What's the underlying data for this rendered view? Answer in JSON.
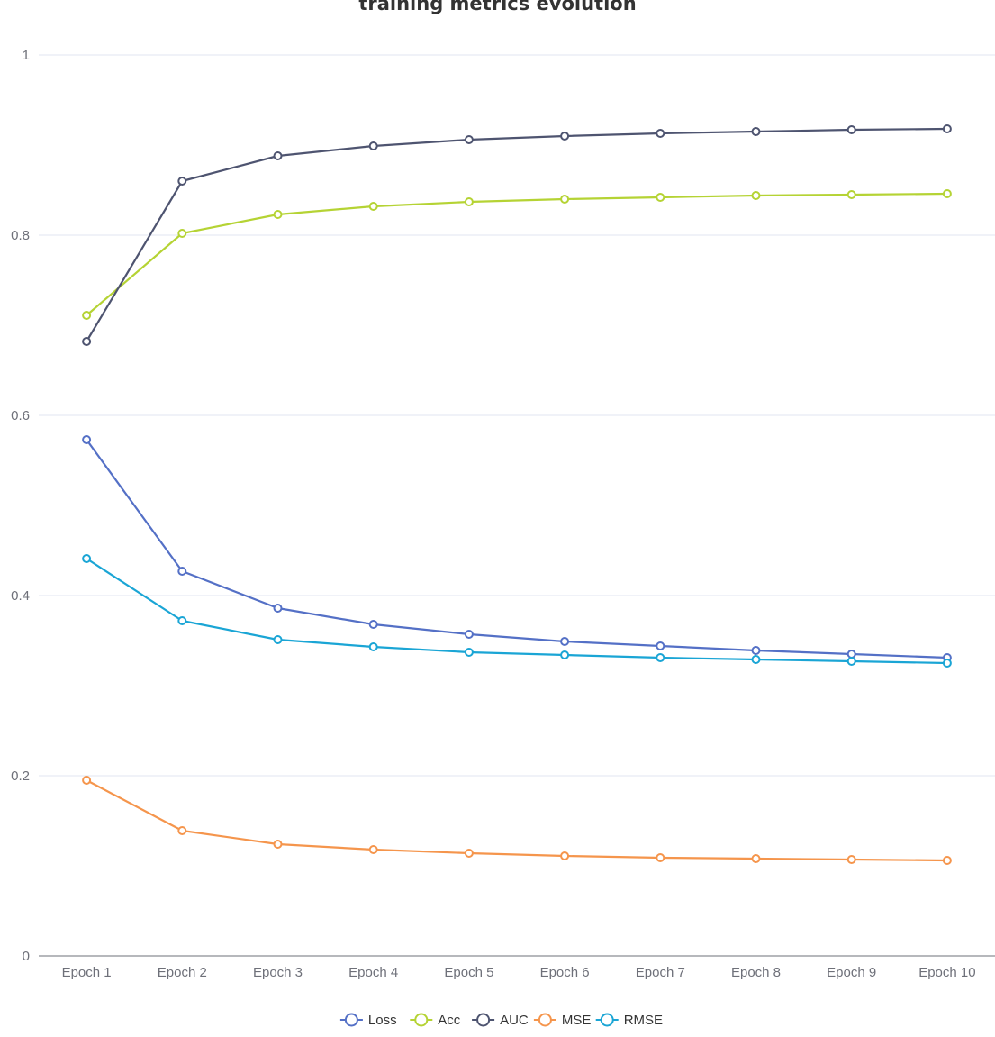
{
  "chart_data": {
    "type": "line",
    "title": "training metrics evolution",
    "xlabel": "",
    "ylabel": "",
    "categories": [
      "Epoch 1",
      "Epoch 2",
      "Epoch 3",
      "Epoch 4",
      "Epoch 5",
      "Epoch 6",
      "Epoch 7",
      "Epoch 8",
      "Epoch 9",
      "Epoch 10"
    ],
    "ylim": [
      0,
      1
    ],
    "y_ticks": [
      "0",
      "0.2",
      "0.4",
      "0.6",
      "0.8",
      "1"
    ],
    "grid": true,
    "legend_position": "bottom",
    "series": [
      {
        "name": "Loss",
        "color": "#5470c6",
        "values": [
          0.573,
          0.427,
          0.386,
          0.368,
          0.357,
          0.349,
          0.344,
          0.339,
          0.335,
          0.331
        ]
      },
      {
        "name": "Acc",
        "color": "#b5d334",
        "values": [
          0.711,
          0.802,
          0.823,
          0.832,
          0.837,
          0.84,
          0.842,
          0.844,
          0.845,
          0.846
        ]
      },
      {
        "name": "AUC",
        "color": "#4e5470",
        "values": [
          0.682,
          0.86,
          0.888,
          0.899,
          0.906,
          0.91,
          0.913,
          0.915,
          0.917,
          0.918
        ]
      },
      {
        "name": "MSE",
        "color": "#f5954c",
        "values": [
          0.195,
          0.139,
          0.124,
          0.118,
          0.114,
          0.111,
          0.109,
          0.108,
          0.107,
          0.106
        ]
      },
      {
        "name": "RMSE",
        "color": "#1aa5d5",
        "values": [
          0.441,
          0.372,
          0.351,
          0.343,
          0.337,
          0.334,
          0.331,
          0.329,
          0.327,
          0.325
        ]
      }
    ]
  }
}
